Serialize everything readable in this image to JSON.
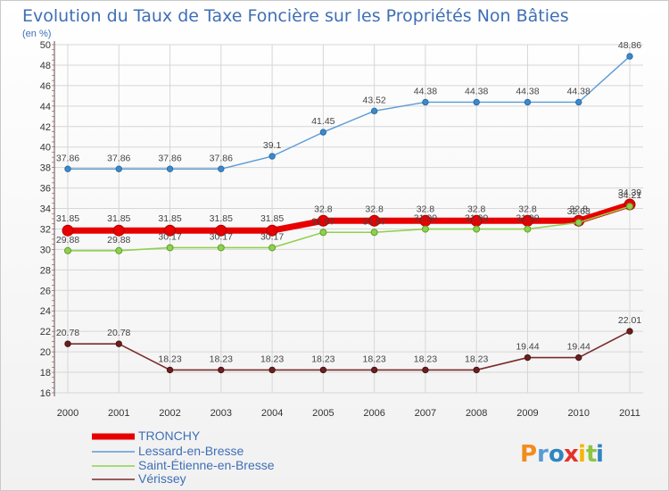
{
  "chart_data": {
    "type": "line",
    "title": "Evolution du Taux de Taxe Foncière sur les Propriétés Non Bâties",
    "ylabel": "(en %)",
    "ylim": [
      16,
      50
    ],
    "yticks": [
      16,
      18,
      20,
      22,
      24,
      26,
      28,
      30,
      32,
      34,
      36,
      38,
      40,
      42,
      44,
      46,
      48,
      50
    ],
    "categories": [
      "2000",
      "2001",
      "2002",
      "2003",
      "2004",
      "2005",
      "2006",
      "2007",
      "2008",
      "2009",
      "2010",
      "2011"
    ],
    "grid": true,
    "legend_position": "bottom-left",
    "series": [
      {
        "name": "TRONCHY",
        "color": "#e80000",
        "values": [
          31.85,
          31.85,
          31.85,
          31.85,
          31.85,
          32.8,
          32.8,
          32.8,
          32.8,
          32.8,
          32.8,
          34.39
        ],
        "labels": [
          "31.85",
          "31.85",
          "31.85",
          "31.85",
          "31.85",
          "32.8",
          "32.8",
          "32.8",
          "32.8",
          "32.8",
          "32.8",
          "34.39"
        ]
      },
      {
        "name": "Lessard-en-Bresse",
        "color": "#5a9bd5",
        "values": [
          37.86,
          37.86,
          37.86,
          37.86,
          39.1,
          41.45,
          43.52,
          44.38,
          44.38,
          44.38,
          44.38,
          48.86
        ],
        "labels": [
          "37.86",
          "37.86",
          "37.86",
          "37.86",
          "39.1",
          "41.45",
          "43.52",
          "44.38",
          "44.38",
          "44.38",
          "44.38",
          "48.86"
        ]
      },
      {
        "name": "Saint-Étienne-en-Bresse",
        "color": "#8fd14f",
        "values": [
          29.88,
          29.88,
          30.17,
          30.17,
          30.17,
          31.67,
          31.67,
          31.99,
          31.99,
          31.99,
          32.63,
          34.21
        ],
        "labels": [
          "29.88",
          "29.88",
          "30.17",
          "30.17",
          "30.17",
          "31.67",
          "31.67",
          "31.99",
          "31.99",
          "31.99",
          "32.63",
          "34.21"
        ]
      },
      {
        "name": "Vérissey",
        "color": "#7a2b2b",
        "values": [
          20.78,
          20.78,
          18.23,
          18.23,
          18.23,
          18.23,
          18.23,
          18.23,
          18.23,
          19.44,
          19.44,
          22.01
        ],
        "labels": [
          "20.78",
          "20.78",
          "18.23",
          "18.23",
          "18.23",
          "18.23",
          "18.23",
          "18.23",
          "18.23",
          "19.44",
          "19.44",
          "22.01"
        ]
      }
    ]
  },
  "logo": {
    "text": "Proxiti",
    "colors": [
      "#f28c1c",
      "#5b9bd5",
      "#2e86c1",
      "#e5302a",
      "#f7b500",
      "#8cc63f",
      "#2e86c1"
    ]
  }
}
